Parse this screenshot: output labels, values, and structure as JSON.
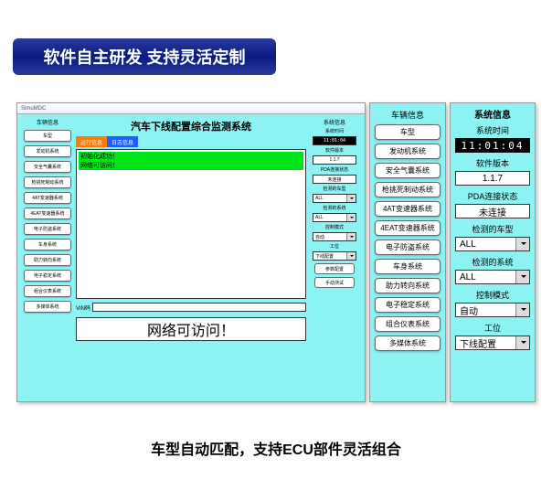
{
  "banner": "软件自主研发  支持灵活定制",
  "caption": "车型自动匹配，支持ECU部件灵活组合",
  "window": {
    "titlebar": "SimuMDC",
    "title": "汽车下线配置综合监测系统",
    "left_header": "车辆信息",
    "left_items": [
      "车型",
      "发动机系统",
      "安全气囊系统",
      "枪挑死制动系统",
      "4AT变速器系统",
      "4EAT变速器系统",
      "电子防盗系统",
      "车身系统",
      "助力转向系统",
      "电子稳定系统",
      "组合仪表系统",
      "多媒体系统"
    ],
    "tab_run": "运行信息",
    "tab_log": "日志信息",
    "log_line1": "初始化成功！",
    "log_line2": "网络可访问！",
    "vin_label": "VIN码",
    "bigmsg": "网络可访问！",
    "right_header": "系统信息",
    "r": {
      "time_l": "系统时间",
      "time_v": "11:01:04",
      "ver_l": "软件版本",
      "ver_v": "1.1.7",
      "pda_l": "PDA连接状态",
      "pda_v": "未连接",
      "carsel_l": "检测的车型",
      "carsel_v": "ALL",
      "syssel_l": "检测的系统",
      "syssel_v": "ALL",
      "mode_l": "控制模式",
      "mode_v": "自动",
      "stn_l": "工位",
      "stn_v": "下线配置",
      "btn_cfg": "参数配置",
      "btn_test": "手动测试"
    }
  },
  "mid": {
    "header": "车辆信息",
    "items": [
      "车型",
      "发动机系统",
      "安全气囊系统",
      "枪挑死制动系统",
      "4AT变速器系统",
      "4EAT变速器系统",
      "电子防盗系统",
      "车身系统",
      "助力转向系统",
      "电子稳定系统",
      "组合仪表系统",
      "多媒体系统"
    ]
  },
  "right": {
    "header": "系统信息",
    "time_l": "系统时间",
    "time_v": "11:01:04",
    "ver_l": "软件版本",
    "ver_v": "1.1.7",
    "pda_l": "PDA连接状态",
    "pda_v": "未连接",
    "carsel_l": "检测的车型",
    "carsel_v": "ALL",
    "syssel_l": "检测的系统",
    "syssel_v": "ALL",
    "mode_l": "控制模式",
    "mode_v": "自动",
    "stn_l": "工位",
    "stn_v": "下线配置"
  }
}
